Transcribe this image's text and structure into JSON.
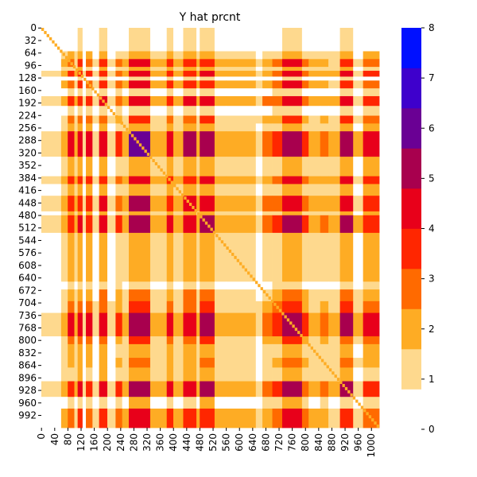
{
  "chart_data": {
    "type": "heatmap",
    "title": "Y hat prcnt",
    "xlabel": "",
    "ylabel": "",
    "matrix_size": 1024,
    "x_ticks": [
      "0",
      "40",
      "80",
      "120",
      "160",
      "200",
      "240",
      "280",
      "320",
      "360",
      "400",
      "440",
      "480",
      "520",
      "560",
      "600",
      "640",
      "680",
      "720",
      "760",
      "800",
      "840",
      "880",
      "920",
      "960",
      "1000"
    ],
    "y_ticks": [
      "0",
      "32",
      "64",
      "96",
      "128",
      "160",
      "192",
      "224",
      "256",
      "288",
      "320",
      "352",
      "384",
      "416",
      "448",
      "480",
      "512",
      "544",
      "576",
      "608",
      "640",
      "672",
      "704",
      "736",
      "768",
      "800",
      "832",
      "864",
      "896",
      "928",
      "960",
      "992"
    ],
    "colorbar": {
      "range": [
        0,
        8
      ],
      "ticks": [
        "0",
        "1",
        "2",
        "3",
        "4",
        "5",
        "6",
        "7",
        "8"
      ],
      "below_min_color": "#ffffff",
      "bins": [
        {
          "from": 0.8,
          "to": 1.6,
          "color": "#fed98e"
        },
        {
          "from": 1.6,
          "to": 2.4,
          "color": "#feac24"
        },
        {
          "from": 2.4,
          "to": 3.2,
          "color": "#ff6a00"
        },
        {
          "from": 3.2,
          "to": 4.0,
          "color": "#ff2600"
        },
        {
          "from": 4.0,
          "to": 4.8,
          "color": "#e8001a"
        },
        {
          "from": 4.8,
          "to": 5.6,
          "color": "#a8004e"
        },
        {
          "from": 5.6,
          "to": 6.4,
          "color": "#6a0094"
        },
        {
          "from": 6.4,
          "to": 7.2,
          "color": "#3e00cc"
        },
        {
          "from": 7.2,
          "to": 8.0,
          "color": "#0010ff"
        }
      ]
    },
    "blocks": [
      {
        "from": 0,
        "to": 60,
        "level": 0.2
      },
      {
        "from": 60,
        "to": 80,
        "level": 0.9
      },
      {
        "from": 80,
        "to": 100,
        "level": 3.0
      },
      {
        "from": 100,
        "to": 110,
        "level": 0.8
      },
      {
        "from": 110,
        "to": 125,
        "level": 3.5
      },
      {
        "from": 125,
        "to": 135,
        "level": 0.2
      },
      {
        "from": 135,
        "to": 155,
        "level": 3.0
      },
      {
        "from": 155,
        "to": 175,
        "level": 0.3
      },
      {
        "from": 175,
        "to": 200,
        "level": 4.0
      },
      {
        "from": 200,
        "to": 225,
        "level": 0.3
      },
      {
        "from": 225,
        "to": 245,
        "level": 2.2
      },
      {
        "from": 245,
        "to": 265,
        "level": 0.9
      },
      {
        "from": 265,
        "to": 330,
        "level": 5.6
      },
      {
        "from": 330,
        "to": 380,
        "level": 1.0
      },
      {
        "from": 380,
        "to": 400,
        "level": 3.5
      },
      {
        "from": 400,
        "to": 430,
        "level": 0.9
      },
      {
        "from": 430,
        "to": 470,
        "level": 4.2
      },
      {
        "from": 470,
        "to": 480,
        "level": 1.0
      },
      {
        "from": 480,
        "to": 525,
        "level": 5.2
      },
      {
        "from": 525,
        "to": 560,
        "level": 0.9
      },
      {
        "from": 560,
        "to": 650,
        "level": 0.9
      },
      {
        "from": 650,
        "to": 670,
        "level": 0.3
      },
      {
        "from": 670,
        "to": 700,
        "level": 1.5
      },
      {
        "from": 700,
        "to": 730,
        "level": 2.4
      },
      {
        "from": 730,
        "to": 790,
        "level": 5.4
      },
      {
        "from": 790,
        "to": 810,
        "level": 2.0
      },
      {
        "from": 810,
        "to": 845,
        "level": 0.9
      },
      {
        "from": 845,
        "to": 870,
        "level": 1.3
      },
      {
        "from": 870,
        "to": 905,
        "level": 0.8
      },
      {
        "from": 905,
        "to": 945,
        "level": 5.0
      },
      {
        "from": 945,
        "to": 975,
        "level": 0.5
      },
      {
        "from": 975,
        "to": 1024,
        "level": 3.0
      }
    ],
    "diagonal_level": 2.0
  }
}
